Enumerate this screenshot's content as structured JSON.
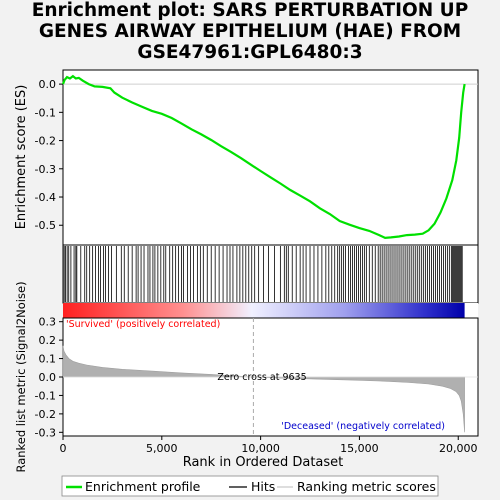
{
  "chart_data": {
    "type": "line",
    "title": "Enrichment plot: SARS PERTURBATION UP\nGENES AIRWAY EPITHELIUM (HAE) FROM\nGSE47961:GPL6480:3",
    "xlabel": "Rank in Ordered Dataset",
    "ylabel_es": "Enrichment score (ES)",
    "ylabel_metric": "Ranked list metric (Signal2Noise)",
    "xlim": [
      0,
      21000
    ],
    "x_ticks": [
      "0",
      "5,000",
      "10,000",
      "15,000",
      "20,000"
    ],
    "x_tick_values": [
      0,
      5000,
      10000,
      15000,
      20000
    ],
    "es_ylim": [
      -0.57,
      0.05
    ],
    "es_ticks": [
      "0.0",
      "-0.1",
      "-0.2",
      "-0.3",
      "-0.4",
      "-0.5"
    ],
    "es_tick_values": [
      0.0,
      -0.1,
      -0.2,
      -0.3,
      -0.4,
      -0.5
    ],
    "metric_ylim": [
      -0.32,
      0.32
    ],
    "metric_ticks": [
      "0.3",
      "0.2",
      "0.1",
      "0.0",
      "-0.1",
      "-0.2",
      "-0.3"
    ],
    "metric_tick_values": [
      0.3,
      0.2,
      0.1,
      0.0,
      -0.1,
      -0.2,
      -0.3
    ],
    "es_curve": {
      "x": [
        0,
        80,
        200,
        350,
        500,
        650,
        800,
        1000,
        1300,
        1600,
        2000,
        2400,
        2600,
        3000,
        3500,
        4000,
        4500,
        5000,
        5500,
        6000,
        6500,
        7000,
        7500,
        8000,
        8500,
        9000,
        9500,
        10000,
        10500,
        11000,
        11500,
        12000,
        12500,
        13000,
        13500,
        14000,
        14500,
        15000,
        15500,
        16000,
        16300,
        16600,
        17000,
        17400,
        17800,
        18200,
        18500,
        18800,
        19100,
        19400,
        19700,
        19900,
        20050,
        20150,
        20250,
        20320
      ],
      "y": [
        0.0,
        0.015,
        0.025,
        0.02,
        0.028,
        0.02,
        0.022,
        0.012,
        0.0,
        -0.008,
        -0.01,
        -0.015,
        -0.03,
        -0.048,
        -0.065,
        -0.08,
        -0.095,
        -0.105,
        -0.12,
        -0.14,
        -0.16,
        -0.178,
        -0.198,
        -0.22,
        -0.24,
        -0.262,
        -0.285,
        -0.308,
        -0.33,
        -0.352,
        -0.375,
        -0.395,
        -0.415,
        -0.44,
        -0.46,
        -0.485,
        -0.498,
        -0.51,
        -0.52,
        -0.535,
        -0.545,
        -0.543,
        -0.54,
        -0.535,
        -0.533,
        -0.53,
        -0.518,
        -0.495,
        -0.455,
        -0.405,
        -0.34,
        -0.27,
        -0.19,
        -0.1,
        -0.03,
        0.0
      ]
    },
    "zero_cross_x": 9635,
    "annotations": {
      "zero_cross": "Zero cross at 9635",
      "positive": "'Survived' (positively correlated)",
      "negative": "'Deceased' (negatively correlated)"
    },
    "hit_ranks": [
      60,
      130,
      210,
      290,
      400,
      560,
      650,
      700,
      900,
      1100,
      1200,
      1350,
      1500,
      1650,
      1800,
      1900,
      2050,
      2150,
      2300,
      2450,
      2700,
      2950,
      3100,
      3300,
      3500,
      3700,
      3800,
      3950,
      4100,
      4300,
      4400,
      4550,
      4650,
      4800,
      4950,
      5100,
      5200,
      5400,
      5550,
      5700,
      5850,
      6000,
      6100,
      6300,
      6450,
      6600,
      6800,
      6950,
      7100,
      7300,
      7500,
      7700,
      7900,
      8100,
      8300,
      8450,
      8600,
      8800,
      8950,
      9100,
      9250,
      9400,
      9550,
      9700,
      9900,
      10150,
      10400,
      10700,
      11000,
      11200,
      11300,
      11400,
      11600,
      11800,
      12000,
      12150,
      12300,
      12500,
      12700,
      12900,
      13100,
      13300,
      13450,
      13600,
      13750,
      13900,
      14000,
      14100,
      14200,
      14300,
      14450,
      14550,
      14650,
      14750,
      14850,
      14950,
      15050,
      15150,
      15250,
      15350,
      15500,
      15650,
      15800,
      15950,
      16050,
      16150,
      16250,
      16350,
      16450,
      16550,
      16650,
      16750,
      16850,
      16950,
      17050,
      17150,
      17250,
      17350,
      17450,
      17550,
      17650,
      17750,
      17850,
      17950,
      18050,
      18150,
      18250,
      18350,
      18450,
      18550,
      18650,
      18750,
      18850,
      18950,
      19050,
      19150,
      19250,
      19350,
      19450,
      19550,
      19650,
      19700,
      19750,
      19800,
      19850,
      19900,
      19950,
      20000,
      20050,
      20100,
      20150,
      20200
    ],
    "metric_curve": {
      "x": [
        0,
        50,
        150,
        300,
        500,
        800,
        1200,
        2000,
        3000,
        4500,
        6000,
        7500,
        9000,
        9635,
        11000,
        13000,
        15000,
        16500,
        17500,
        18500,
        19200,
        19600,
        19900,
        20050,
        20150,
        20250,
        20320
      ],
      "y": [
        0.17,
        0.14,
        0.12,
        0.1,
        0.085,
        0.075,
        0.065,
        0.052,
        0.042,
        0.032,
        0.022,
        0.014,
        0.004,
        0.0,
        -0.006,
        -0.012,
        -0.018,
        -0.024,
        -0.03,
        -0.038,
        -0.05,
        -0.062,
        -0.08,
        -0.1,
        -0.13,
        -0.2,
        -0.3
      ]
    },
    "legend": [
      "Enrichment profile",
      "Hits",
      "Ranking metric scores"
    ],
    "colors": {
      "es_line": "#00e000",
      "hits": "#000000",
      "metric": "#b0b0b0",
      "positive": "#ff0000",
      "negative": "#0000cc",
      "zero_line": "#aaaaaa"
    }
  }
}
